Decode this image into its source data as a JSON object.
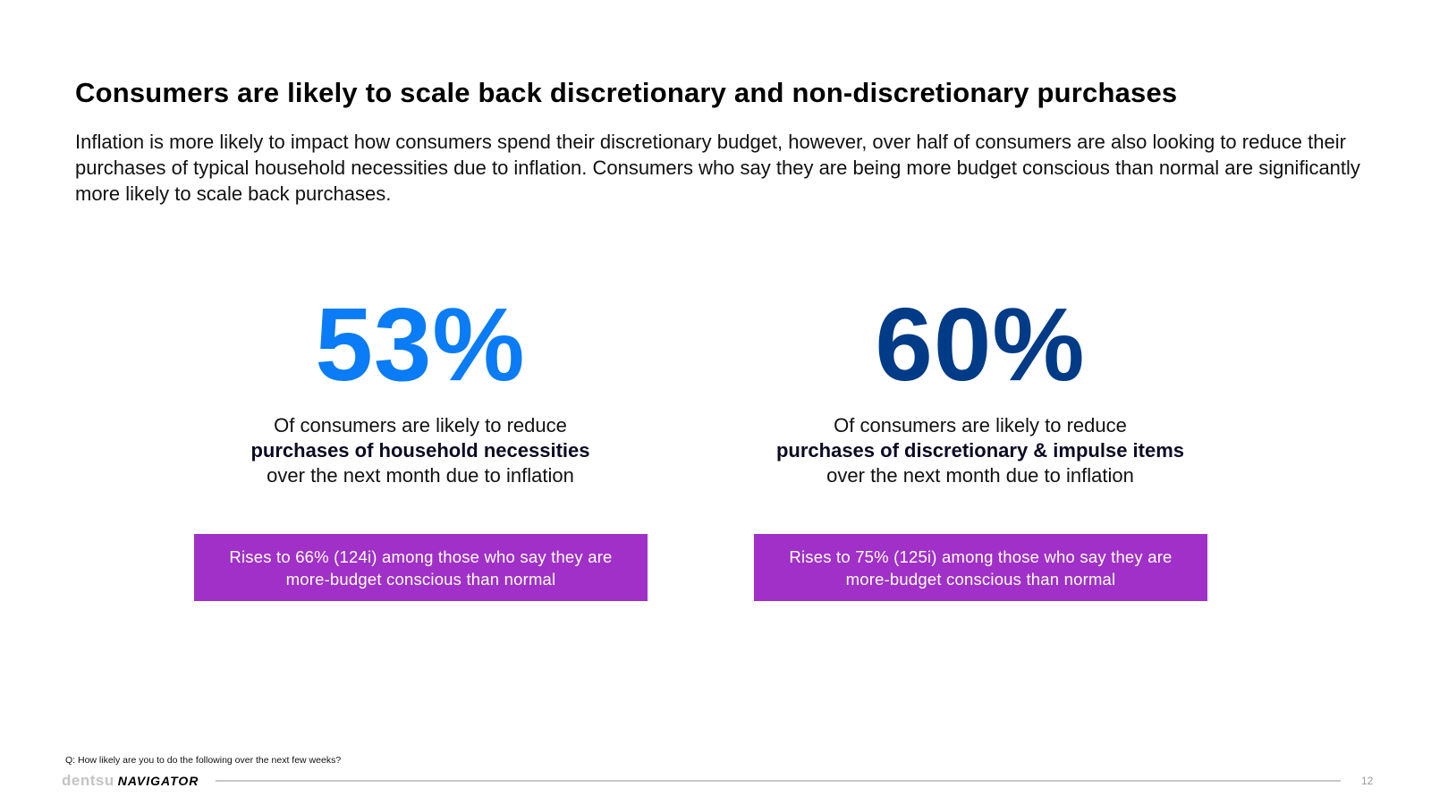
{
  "header": {
    "title": "Consumers are likely to scale back discretionary and non-discretionary purchases",
    "subtitle": "Inflation is more likely to impact how consumers spend their discretionary budget, however, over half of consumers are also looking to reduce their purchases of typical household necessities due to inflation. Consumers who say they are being more budget conscious than normal are significantly more likely to scale back purchases."
  },
  "stats": [
    {
      "value": "53%",
      "line1": "Of consumers are likely to reduce",
      "line2": "purchases of household necessities",
      "line3": "over the next month due to inflation",
      "callout": "Rises to 66% (124i) among those who say they are more-budget conscious than normal",
      "color": "#0a7cf5"
    },
    {
      "value": "60%",
      "line1": "Of consumers are likely to reduce",
      "line2": "purchases of discretionary & impulse items",
      "line3": "over the next month due to inflation",
      "callout": "Rises to 75% (125i) among those who say they are more-budget conscious than normal",
      "color": "#003b87"
    }
  ],
  "callout_color": "#a030c8",
  "footer": {
    "question": "Q: How likely are you to do the following over the next few weeks?",
    "brand_primary": "dentsu",
    "brand_secondary": "NAVIGATOR",
    "page_number": "12"
  }
}
